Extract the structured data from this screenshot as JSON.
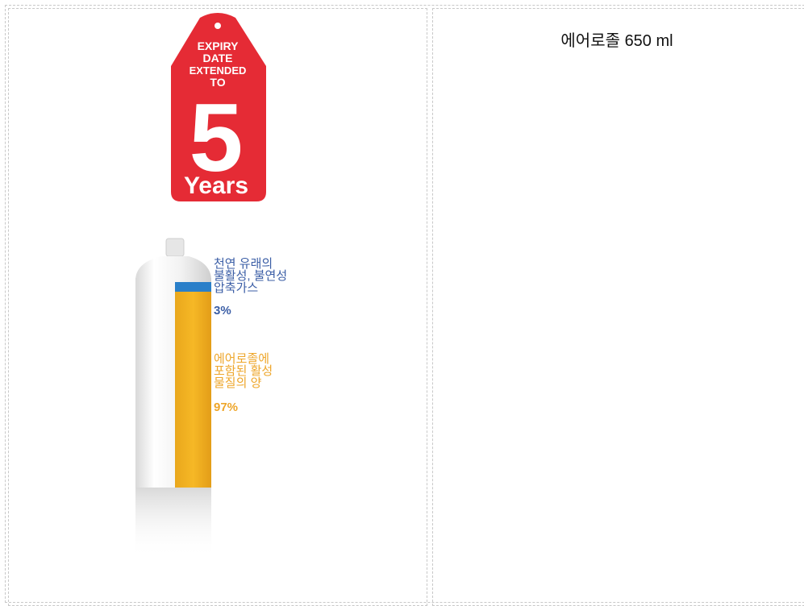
{
  "left_cell": {
    "badge": {
      "heading_lines": [
        "EXPIRY",
        "DATE",
        "EXTENDED",
        "TO"
      ],
      "number": "5",
      "unit": "Years"
    },
    "can_labels": {
      "gas": {
        "lines": [
          "천연 유래의",
          "불활성, 불연성",
          "압축가스"
        ],
        "share": "3%"
      },
      "active": {
        "lines": [
          "에어로졸에",
          "포함된 활성",
          "물질의 양"
        ],
        "share": "97%"
      }
    }
  },
  "right_cell": {
    "title": "에어로졸 650 ml"
  }
}
